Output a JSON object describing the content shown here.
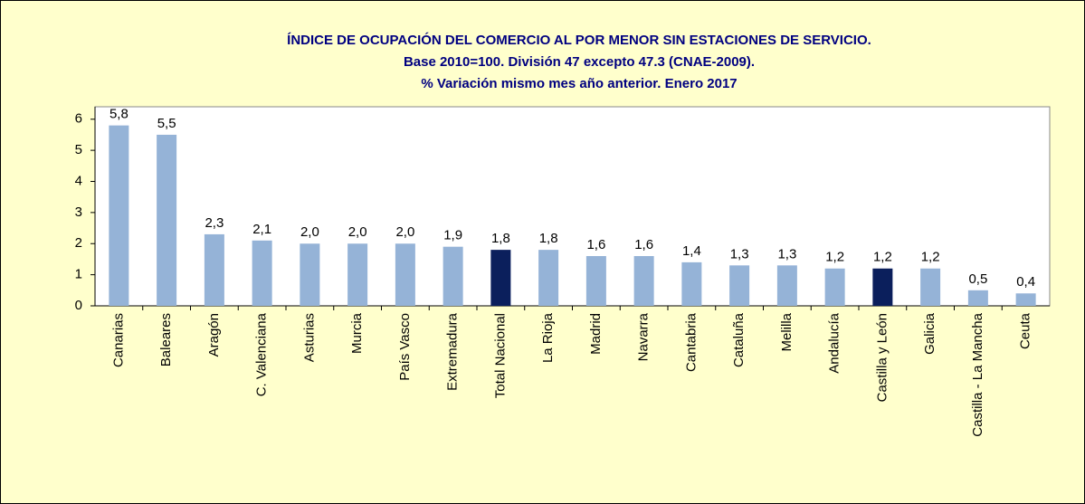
{
  "chart_data": {
    "type": "bar",
    "title": [
      "ÍNDICE DE OCUPACIÓN DEL COMERCIO AL POR MENOR SIN ESTACIONES DE SERVICIO.",
      "Base 2010=100. División 47 excepto 47.3 (CNAE-2009).",
      "% Variación mismo mes año anterior. Enero 2017"
    ],
    "categories": [
      "Canarias",
      "Baleares",
      "Aragón",
      "C. Valenciana",
      "Asturias",
      "Murcia",
      "País Vasco",
      "Extremadura",
      "Total Nacional",
      "La Rioja",
      "Madrid",
      "Navarra",
      "Cantabria",
      "Cataluña",
      "Melilla",
      "Andalucía",
      "Castilla y León",
      "Galicia",
      "Castilla - La Mancha",
      "Ceuta"
    ],
    "values": [
      5.8,
      5.5,
      2.3,
      2.1,
      2.0,
      2.0,
      2.0,
      1.9,
      1.8,
      1.8,
      1.6,
      1.6,
      1.4,
      1.3,
      1.3,
      1.2,
      1.2,
      1.2,
      0.5,
      0.4
    ],
    "value_labels": [
      "5,8",
      "5,5",
      "2,3",
      "2,1",
      "2,0",
      "2,0",
      "2,0",
      "1,9",
      "1,8",
      "1,8",
      "1,6",
      "1,6",
      "1,4",
      "1,3",
      "1,3",
      "1,2",
      "1,2",
      "1,2",
      "0,5",
      "0,4"
    ],
    "colors": [
      "#95b3d7",
      "#95b3d7",
      "#95b3d7",
      "#95b3d7",
      "#95b3d7",
      "#95b3d7",
      "#95b3d7",
      "#95b3d7",
      "#0b1f5c",
      "#95b3d7",
      "#95b3d7",
      "#95b3d7",
      "#95b3d7",
      "#95b3d7",
      "#95b3d7",
      "#95b3d7",
      "#0b1f5c",
      "#95b3d7",
      "#95b3d7",
      "#95b3d7"
    ],
    "ylim": [
      0,
      6.4
    ],
    "yticks": [
      0,
      1,
      2,
      3,
      4,
      5,
      6
    ],
    "grid": false
  }
}
